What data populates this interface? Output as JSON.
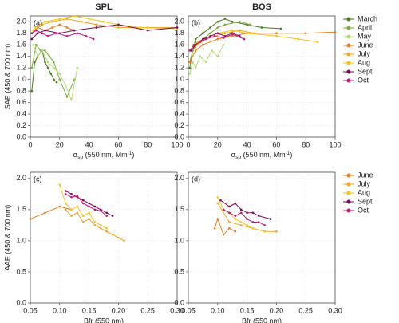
{
  "chart_data": [
    {
      "type": "line",
      "label": "(a)",
      "title": "SPL",
      "ylabel": "SAE (450 & 700 nm)",
      "xlabel": {
        "symbol": "σ",
        "sub": "sp",
        "text": " (550 nm, Mm",
        "sup": "-1",
        "end": ")"
      },
      "xlim": [
        0,
        100
      ],
      "xticks": [
        0,
        20,
        40,
        60,
        80,
        100
      ],
      "ylim": [
        0,
        2.1
      ],
      "yticks": [
        {
          "value": 0,
          "label": "0.0"
        },
        0.2,
        0.4,
        0.6,
        0.8,
        {
          "value": 1,
          "label": "1.0"
        },
        1.2,
        1.4,
        1.6,
        1.8,
        {
          "value": 2,
          "label": "2.0"
        }
      ],
      "grid": true,
      "series": [
        {
          "color": "#4a7a1e",
          "x": [
            1,
            3,
            5,
            8,
            10,
            12,
            14,
            16,
            18
          ],
          "values": [
            0.8,
            1.3,
            1.4,
            1.5,
            1.3,
            1.2,
            1.1,
            1.0,
            0.95
          ]
        },
        {
          "color": "#7aad3a",
          "x": [
            1,
            4,
            7,
            10,
            13,
            16,
            20,
            25,
            30
          ],
          "values": [
            1.2,
            1.6,
            1.5,
            1.5,
            1.4,
            1.3,
            1.0,
            0.7,
            1.0
          ]
        },
        {
          "color": "#b5db7a",
          "x": [
            2,
            5,
            8,
            12,
            16,
            20,
            24,
            28,
            32
          ],
          "values": [
            1.6,
            1.4,
            1.5,
            1.3,
            1.2,
            1.1,
            0.9,
            0.65,
            1.2
          ]
        },
        {
          "color": "#f07a14",
          "x": [
            1,
            5,
            10,
            15,
            20,
            25,
            30
          ],
          "values": [
            1.8,
            1.9,
            1.85,
            1.9,
            1.95,
            1.9,
            1.85
          ]
        },
        {
          "color": "#f5a623",
          "x": [
            2,
            8,
            15,
            25,
            35,
            45,
            60,
            80,
            100
          ],
          "values": [
            1.85,
            1.95,
            2.0,
            2.05,
            2.0,
            1.95,
            1.9,
            1.9,
            1.9
          ]
        },
        {
          "color": "#f5c518",
          "x": [
            3,
            10,
            20,
            30,
            40,
            50,
            60,
            75,
            100
          ],
          "values": [
            1.9,
            2.0,
            2.05,
            2.1,
            2.05,
            2.0,
            1.95,
            1.9,
            1.88
          ]
        },
        {
          "color": "#7a0a55",
          "x": [
            1,
            5,
            10,
            20,
            30,
            45,
            60,
            80,
            100
          ],
          "values": [
            1.7,
            1.8,
            1.85,
            1.8,
            1.85,
            1.9,
            1.95,
            1.85,
            1.9
          ]
        },
        {
          "color": "#c0187a",
          "x": [
            1,
            4,
            8,
            12,
            18,
            25,
            32,
            38,
            43
          ],
          "values": [
            1.8,
            1.85,
            1.8,
            1.75,
            1.8,
            1.75,
            1.8,
            1.75,
            1.7
          ]
        }
      ]
    },
    {
      "type": "line",
      "label": "(b)",
      "title": "BOS",
      "xlabel": {
        "symbol": "σ",
        "sub": "sp",
        "text": " (550 nm, Mm",
        "sup": "-1",
        "end": ")"
      },
      "xlim": [
        0,
        100
      ],
      "xticks": [
        0,
        20,
        40,
        60,
        80,
        100
      ],
      "ylim": [
        0,
        2.1
      ],
      "yticks": [
        {
          "value": 0,
          "label": "0.0"
        },
        0.2,
        0.4,
        0.6,
        0.8,
        {
          "value": 1,
          "label": "1.0"
        },
        1.2,
        1.4,
        1.6,
        1.8,
        {
          "value": 2,
          "label": "2.0"
        }
      ],
      "grid": true,
      "legend": "right",
      "series": [
        {
          "name": "March",
          "color": "#4a7a1e",
          "x": [
            1,
            3,
            5,
            10,
            15,
            20,
            25,
            30,
            40,
            50,
            63
          ],
          "values": [
            1.2,
            1.5,
            1.7,
            1.8,
            1.9,
            2.0,
            2.05,
            2.0,
            1.95,
            1.9,
            1.88
          ]
        },
        {
          "name": "April",
          "color": "#7aad3a",
          "x": [
            1,
            3,
            6,
            10,
            15,
            20,
            25,
            35,
            42
          ],
          "values": [
            1.3,
            1.5,
            1.6,
            1.7,
            1.8,
            1.9,
            1.95,
            2.0,
            1.95
          ]
        },
        {
          "name": "May",
          "color": "#b5db7a",
          "x": [
            1,
            3,
            5,
            8,
            12,
            16,
            20,
            24
          ],
          "values": [
            1.1,
            1.3,
            1.2,
            1.4,
            1.3,
            1.5,
            1.4,
            1.6
          ]
        },
        {
          "name": "June",
          "color": "#f07a14",
          "x": [
            1,
            5,
            10,
            20,
            30,
            40,
            60,
            80,
            100
          ],
          "values": [
            1.3,
            1.5,
            1.6,
            1.7,
            1.75,
            1.8,
            1.8,
            1.8,
            1.82
          ]
        },
        {
          "name": "July",
          "color": "#f5a623",
          "x": [
            2,
            6,
            12,
            18,
            25,
            35,
            45
          ],
          "values": [
            1.5,
            1.6,
            1.7,
            1.75,
            1.8,
            1.85,
            1.8
          ]
        },
        {
          "name": "Aug",
          "color": "#f5c518",
          "x": [
            3,
            10,
            20,
            30,
            40,
            60,
            75,
            88
          ],
          "values": [
            1.6,
            1.7,
            1.8,
            1.85,
            1.8,
            1.75,
            1.7,
            1.65
          ]
        },
        {
          "name": "Sept",
          "color": "#7a0a55",
          "x": [
            2,
            5,
            10,
            15,
            20,
            25,
            30,
            35
          ],
          "values": [
            1.5,
            1.6,
            1.7,
            1.75,
            1.8,
            1.75,
            1.8,
            1.75
          ]
        },
        {
          "name": "Oct",
          "color": "#c0187a",
          "x": [
            1,
            4,
            8,
            12,
            18,
            24,
            30,
            38
          ],
          "values": [
            1.5,
            1.6,
            1.65,
            1.7,
            1.75,
            1.72,
            1.78,
            1.7
          ]
        }
      ]
    },
    {
      "type": "line",
      "label": "(c)",
      "ylabel": "AAE (450 & 700 nm)",
      "xlabel": "Bfr (550 nm)",
      "xlim": [
        0.05,
        0.3
      ],
      "xticks": [
        0.05,
        {
          "value": 0.1,
          "label": "0.10"
        },
        0.15,
        {
          "value": 0.2,
          "label": "0.20"
        },
        0.25,
        {
          "value": 0.3,
          "label": "0.30"
        }
      ],
      "ylim": [
        0,
        2.1
      ],
      "yticks": [
        {
          "value": 0,
          "label": "0.0"
        },
        0.5,
        {
          "value": 1,
          "label": "1.0"
        },
        1.5,
        {
          "value": 2,
          "label": "2.0"
        }
      ],
      "grid": true,
      "series": [
        {
          "color": "#f07a14",
          "x": [
            0.05,
            0.075,
            0.1,
            0.12
          ],
          "values": [
            1.35,
            1.45,
            1.55,
            1.5
          ]
        },
        {
          "color": "#f5a623",
          "x": [
            0.11,
            0.12,
            0.13,
            0.14,
            0.15,
            0.16,
            0.17,
            0.18,
            0.19,
            0.2,
            0.21
          ],
          "values": [
            1.5,
            1.4,
            1.45,
            1.3,
            1.35,
            1.25,
            1.2,
            1.15,
            1.1,
            1.05,
            1.0
          ]
        },
        {
          "color": "#f5c518",
          "x": [
            0.1,
            0.11,
            0.12,
            0.13,
            0.14,
            0.15,
            0.16,
            0.17,
            0.18
          ],
          "values": [
            1.9,
            1.6,
            1.5,
            1.55,
            1.4,
            1.45,
            1.3,
            1.25,
            1.2
          ]
        },
        {
          "color": "#7a0a55",
          "x": [
            0.11,
            0.12,
            0.13,
            0.14,
            0.15,
            0.16,
            0.17,
            0.18,
            0.19
          ],
          "values": [
            1.8,
            1.75,
            1.7,
            1.65,
            1.6,
            1.55,
            1.5,
            1.45,
            1.4
          ]
        },
        {
          "color": "#c0187a",
          "x": [
            0.11,
            0.12,
            0.13,
            0.14,
            0.15,
            0.16,
            0.17,
            0.18
          ],
          "values": [
            1.75,
            1.7,
            1.72,
            1.6,
            1.55,
            1.5,
            1.48,
            1.4
          ]
        }
      ]
    },
    {
      "type": "line",
      "label": "(d)",
      "xlabel": "Bfr (550 nm)",
      "xlim": [
        0.05,
        0.3
      ],
      "xticks": [
        0.05,
        {
          "value": 0.1,
          "label": "0.10"
        },
        0.15,
        {
          "value": 0.2,
          "label": "0.20"
        },
        0.25,
        {
          "value": 0.3,
          "label": "0.30"
        }
      ],
      "ylim": [
        0,
        2.1
      ],
      "yticks": [
        {
          "value": 0,
          "label": "0.0"
        },
        0.5,
        {
          "value": 1,
          "label": "1.0"
        },
        1.5,
        {
          "value": 2,
          "label": "2.0"
        }
      ],
      "grid": true,
      "legend": "right",
      "series": [
        {
          "name": "June",
          "color": "#f07a14",
          "x": [
            0.095,
            0.1,
            0.11,
            0.12,
            0.13
          ],
          "values": [
            1.2,
            1.35,
            1.1,
            1.2,
            1.15
          ]
        },
        {
          "name": "July",
          "color": "#f5a623",
          "x": [
            0.1,
            0.12,
            0.14,
            0.16,
            0.18,
            0.2
          ],
          "values": [
            1.6,
            1.3,
            1.25,
            1.2,
            1.15,
            1.15
          ]
        },
        {
          "name": "Aug",
          "color": "#f5c518",
          "x": [
            0.1,
            0.11,
            0.12,
            0.13,
            0.14,
            0.15,
            0.16,
            0.18
          ],
          "values": [
            1.7,
            1.5,
            1.45,
            1.35,
            1.3,
            1.25,
            1.2,
            1.15
          ]
        },
        {
          "name": "Sept",
          "color": "#7a0a55",
          "x": [
            0.105,
            0.12,
            0.13,
            0.14,
            0.15,
            0.16,
            0.17,
            0.19
          ],
          "values": [
            1.65,
            1.55,
            1.6,
            1.5,
            1.45,
            1.45,
            1.4,
            1.35
          ]
        },
        {
          "name": "Oct",
          "color": "#c0187a",
          "x": [
            0.11,
            0.12,
            0.13,
            0.14,
            0.15,
            0.16,
            0.17,
            0.18
          ],
          "values": [
            1.5,
            1.45,
            1.4,
            1.45,
            1.35,
            1.3,
            1.3,
            1.25
          ]
        }
      ]
    }
  ]
}
